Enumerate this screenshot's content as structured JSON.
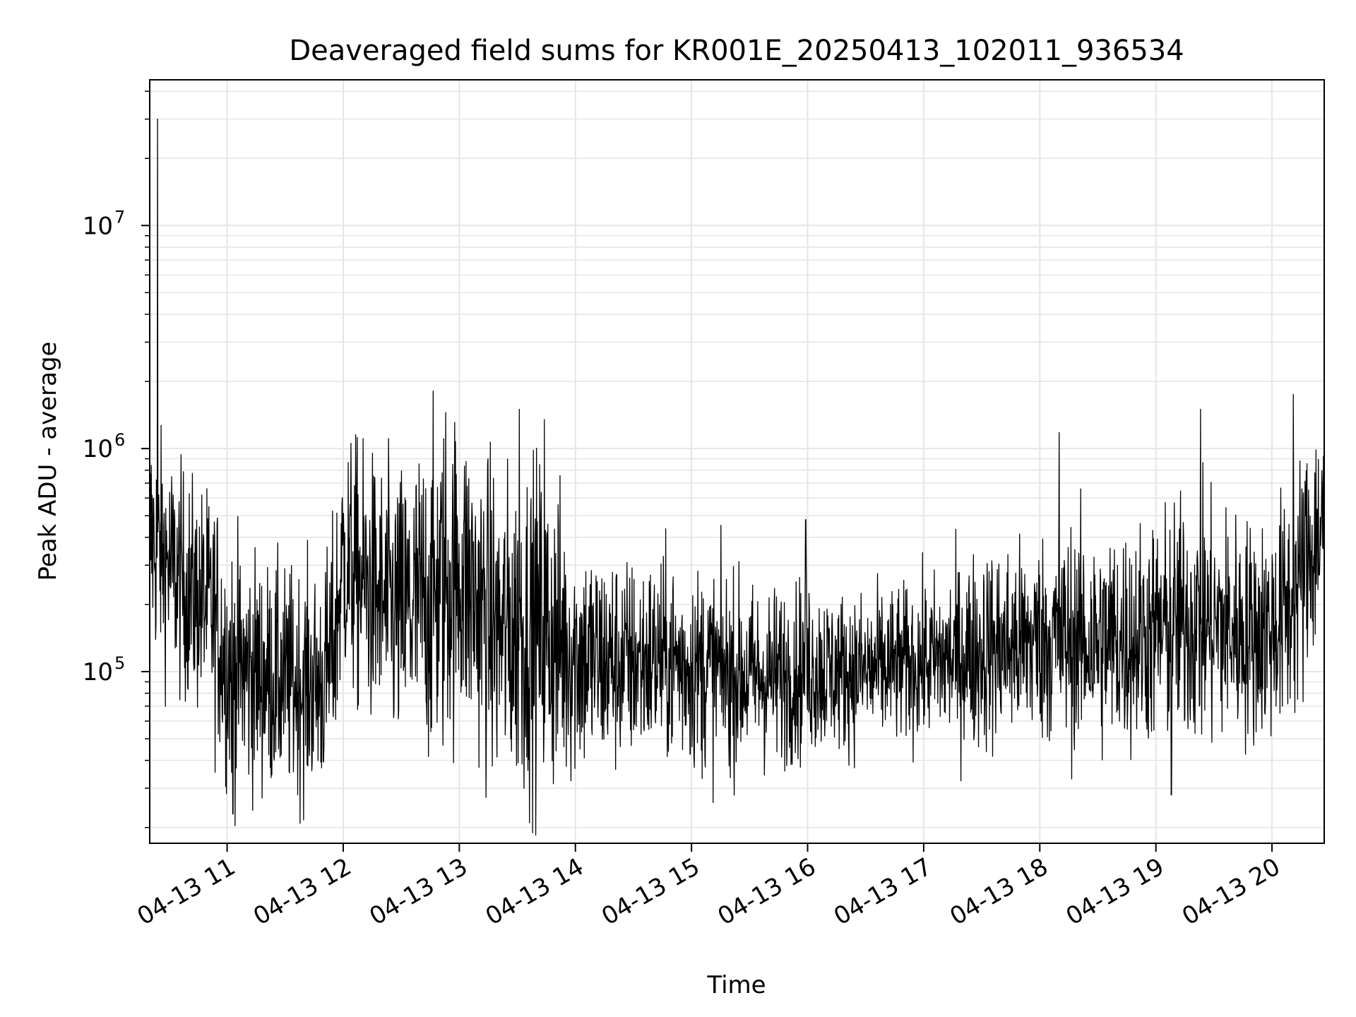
{
  "chart_data": {
    "type": "line",
    "title": "Deaveraged field sums for KR001E_20250413_102011_936534",
    "xlabel": "Time",
    "ylabel": "Peak ADU - average",
    "x_range": [
      "2025-04-13 10:20",
      "2025-04-13 20:27"
    ],
    "ylim": [
      17000,
      45000000
    ],
    "yscale": "log",
    "grid": true,
    "line_color": "#000000",
    "grid_color": "#e6e6e6",
    "x_ticks": [
      {
        "value": "2025-04-13 11:00",
        "label": "04-13 11"
      },
      {
        "value": "2025-04-13 12:00",
        "label": "04-13 12"
      },
      {
        "value": "2025-04-13 13:00",
        "label": "04-13 13"
      },
      {
        "value": "2025-04-13 14:00",
        "label": "04-13 14"
      },
      {
        "value": "2025-04-13 15:00",
        "label": "04-13 15"
      },
      {
        "value": "2025-04-13 16:00",
        "label": "04-13 16"
      },
      {
        "value": "2025-04-13 17:00",
        "label": "04-13 17"
      },
      {
        "value": "2025-04-13 18:00",
        "label": "04-13 18"
      },
      {
        "value": "2025-04-13 19:00",
        "label": "04-13 19"
      },
      {
        "value": "2025-04-13 20:00",
        "label": "04-13 20"
      }
    ],
    "y_ticks": [
      {
        "value": 100000,
        "base": "10",
        "exp": "5"
      },
      {
        "value": 1000000,
        "base": "10",
        "exp": "6"
      },
      {
        "value": 10000000,
        "base": "10",
        "exp": "7"
      }
    ],
    "series": [
      {
        "x": [
          "2025-04-13 10:20",
          "2025-04-13 10:25",
          "2025-04-13 10:30",
          "2025-04-13 10:35",
          "2025-04-13 10:40",
          "2025-04-13 10:45",
          "2025-04-13 10:50",
          "2025-04-13 10:55",
          "2025-04-13 11:00",
          "2025-04-13 11:10",
          "2025-04-13 11:20",
          "2025-04-13 11:30",
          "2025-04-13 11:40",
          "2025-04-13 11:50",
          "2025-04-13 11:55",
          "2025-04-13 12:00",
          "2025-04-13 12:10",
          "2025-04-13 12:20",
          "2025-04-13 12:30",
          "2025-04-13 12:40",
          "2025-04-13 12:50",
          "2025-04-13 13:00",
          "2025-04-13 13:10",
          "2025-04-13 13:20",
          "2025-04-13 13:30",
          "2025-04-13 13:40",
          "2025-04-13 13:50",
          "2025-04-13 14:00",
          "2025-04-13 14:15",
          "2025-04-13 14:30",
          "2025-04-13 14:45",
          "2025-04-13 15:00",
          "2025-04-13 15:15",
          "2025-04-13 15:30",
          "2025-04-13 15:45",
          "2025-04-13 16:00",
          "2025-04-13 16:15",
          "2025-04-13 16:30",
          "2025-04-13 16:45",
          "2025-04-13 17:00",
          "2025-04-13 17:15",
          "2025-04-13 17:30",
          "2025-04-13 17:45",
          "2025-04-13 18:00",
          "2025-04-13 18:15",
          "2025-04-13 18:30",
          "2025-04-13 18:45",
          "2025-04-13 19:00",
          "2025-04-13 19:15",
          "2025-04-13 19:30",
          "2025-04-13 19:45",
          "2025-04-13 20:00",
          "2025-04-13 20:10",
          "2025-04-13 20:20",
          "2025-04-13 20:27"
        ],
        "center": [
          400000,
          350000,
          300000,
          260000,
          230000,
          210000,
          200000,
          160000,
          110000,
          100000,
          95000,
          90000,
          88000,
          90000,
          130000,
          320000,
          250000,
          200000,
          180000,
          200000,
          230000,
          280000,
          200000,
          150000,
          150000,
          160000,
          140000,
          120000,
          110000,
          110000,
          115000,
          105000,
          100000,
          95000,
          95000,
          105000,
          100000,
          100000,
          105000,
          110000,
          115000,
          125000,
          130000,
          140000,
          140000,
          135000,
          140000,
          150000,
          170000,
          160000,
          150000,
          155000,
          200000,
          350000,
          500000
        ],
        "spread": [
          0.55,
          0.5,
          0.5,
          0.5,
          0.5,
          0.5,
          0.5,
          0.55,
          0.55,
          0.55,
          0.5,
          0.5,
          0.5,
          0.5,
          0.55,
          0.55,
          0.6,
          0.6,
          0.65,
          0.7,
          0.75,
          0.7,
          0.7,
          0.7,
          0.7,
          0.75,
          0.7,
          0.55,
          0.5,
          0.45,
          0.45,
          0.45,
          0.45,
          0.4,
          0.4,
          0.4,
          0.35,
          0.35,
          0.35,
          0.35,
          0.4,
          0.45,
          0.45,
          0.45,
          0.5,
          0.5,
          0.5,
          0.5,
          0.55,
          0.55,
          0.5,
          0.5,
          0.55,
          0.55,
          0.5
        ]
      }
    ],
    "spikes": [
      {
        "x": "2025-04-13 10:24",
        "y": 30000000
      },
      {
        "x": "2025-04-13 11:03",
        "y": 23000
      },
      {
        "x": "2025-04-13 12:53",
        "y": 1450000
      },
      {
        "x": "2025-04-13 13:31",
        "y": 1500000
      },
      {
        "x": "2025-04-13 13:44",
        "y": 1350000
      },
      {
        "x": "2025-04-13 15:59",
        "y": 480000
      },
      {
        "x": "2025-04-13 18:10",
        "y": 1180000
      },
      {
        "x": "2025-04-13 19:08",
        "y": 28000
      },
      {
        "x": "2025-04-13 19:23",
        "y": 1500000
      },
      {
        "x": "2025-04-13 20:11",
        "y": 1750000
      }
    ]
  }
}
